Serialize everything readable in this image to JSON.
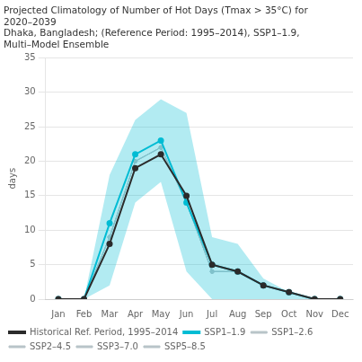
{
  "chart_data": {
    "type": "line",
    "title": [
      "Projected Climatology of Number of Hot Days (Tmax > 35°C) for",
      "2020–2039",
      "Dhaka, Bangladesh; (Reference Period: 1995–2014), SSP1–1.9,",
      "Multi–Model Ensemble"
    ],
    "categories": [
      "Jan",
      "Feb",
      "Mar",
      "Apr",
      "May",
      "Jun",
      "Jul",
      "Aug",
      "Sep",
      "Oct",
      "Nov",
      "Dec"
    ],
    "ylabel": "days",
    "series": [
      {
        "name": "Historical Ref. Period, 1995–2014",
        "color": "#2b2b2b",
        "marker": "circle",
        "values": [
          0,
          0,
          8,
          19,
          21,
          15,
          5,
          4,
          2,
          1,
          0,
          0
        ]
      },
      {
        "name": "SSP1–1.9",
        "color": "#00bcd4",
        "marker": "circle",
        "values": [
          0,
          0,
          11,
          21,
          23,
          14,
          5,
          4,
          2,
          1,
          0,
          0
        ],
        "low": [
          0,
          0,
          2,
          14,
          17,
          4,
          0,
          0,
          0,
          0,
          0,
          0
        ],
        "high": [
          0,
          0,
          18,
          26,
          29,
          27,
          9,
          8,
          3,
          1,
          0,
          0
        ]
      },
      {
        "name": "SSP1–2.6",
        "color": "#b8c4c8",
        "marker": "circle",
        "values": [
          0,
          0,
          9,
          20,
          22,
          14,
          4,
          4,
          2,
          1,
          0,
          0
        ]
      },
      {
        "name": "SSP2–4.5",
        "color": "#b8c4c8",
        "marker": "circle",
        "values": [
          0,
          0,
          9,
          20,
          22,
          14,
          4,
          4,
          2,
          1,
          0,
          0
        ]
      },
      {
        "name": "SSP3–7.0",
        "color": "#b8c4c8",
        "marker": "circle",
        "values": [
          0,
          0,
          9,
          20,
          22,
          14,
          4,
          4,
          2,
          1,
          0,
          0
        ]
      },
      {
        "name": "SSP5–8.5",
        "color": "#b8c4c8",
        "marker": "circle",
        "values": [
          0,
          0,
          9,
          20,
          22,
          14,
          4,
          4,
          2,
          1,
          0,
          0
        ]
      }
    ],
    "ylim": [
      0,
      35
    ],
    "yticks": [
      0,
      5,
      10,
      15,
      20,
      25,
      30,
      35
    ],
    "grid": true,
    "legend": "bottom"
  }
}
